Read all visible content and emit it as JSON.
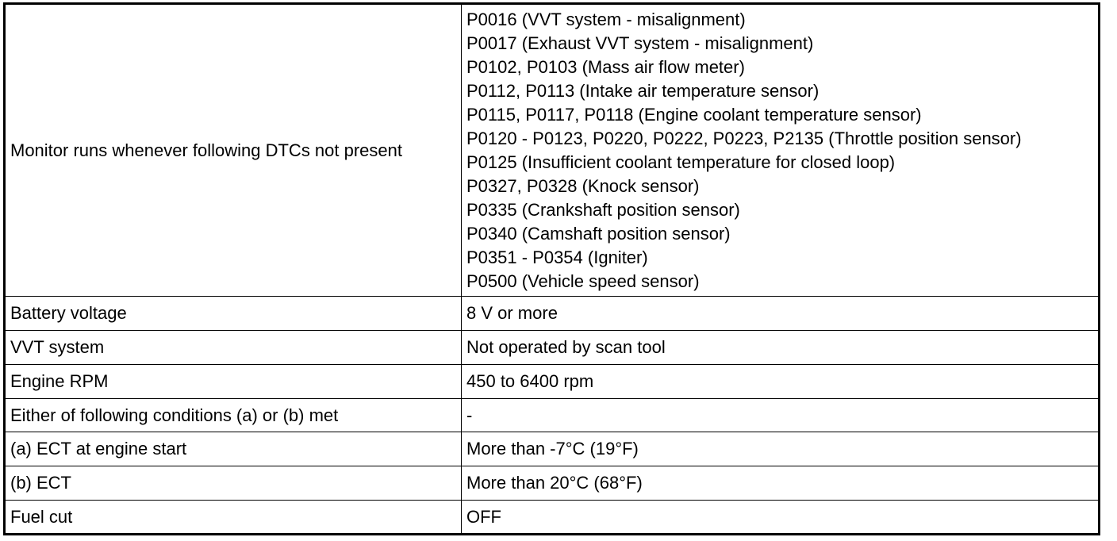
{
  "table": {
    "dtc_row": {
      "condition": "Monitor runs whenever following DTCs not present",
      "dtcs": [
        "P0016 (VVT system - misalignment)",
        "P0017 (Exhaust VVT system - misalignment)",
        "P0102, P0103 (Mass air flow meter)",
        "P0112, P0113 (Intake air temperature sensor)",
        "P0115, P0117, P0118 (Engine coolant temperature sensor)",
        "P0120 - P0123, P0220, P0222, P0223, P2135 (Throttle position sensor)",
        "P0125 (Insufficient coolant temperature for closed loop)",
        "P0327, P0328 (Knock sensor)",
        "P0335 (Crankshaft position sensor)",
        "P0340 (Camshaft position sensor)",
        "P0351 - P0354 (Igniter)",
        "P0500 (Vehicle speed sensor)"
      ]
    },
    "rows": [
      {
        "condition": "Battery voltage",
        "value": "8 V or more"
      },
      {
        "condition": "VVT system",
        "value": "Not operated by scan tool"
      },
      {
        "condition": "Engine RPM",
        "value": "450 to 6400 rpm"
      },
      {
        "condition": "Either of following conditions (a) or (b) met",
        "value": "-"
      },
      {
        "condition": "(a) ECT at engine start",
        "value": "More than -7°C (19°F)"
      },
      {
        "condition": "(b) ECT",
        "value": "More than 20°C (68°F)"
      },
      {
        "condition": "Fuel cut",
        "value": "OFF"
      }
    ]
  }
}
